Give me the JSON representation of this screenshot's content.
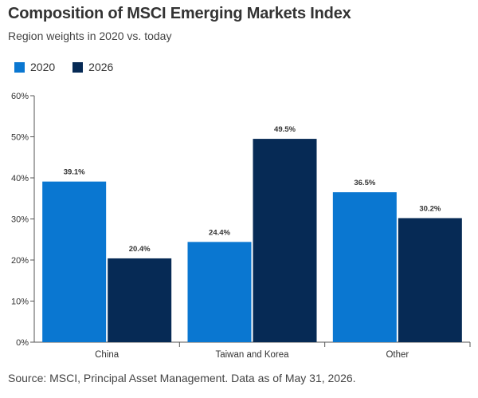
{
  "title": "Composition of MSCI Emerging Markets Index",
  "subtitle": "Region weights in 2020 vs. today",
  "source": "Source: MSCI, Principal Asset Management. Data as of May 31, 2026.",
  "colors": {
    "series_2020": "#0a77d1",
    "series_2026": "#062a55",
    "axis": "#555555",
    "gridline": "#dddddd"
  },
  "chart_data": {
    "type": "bar",
    "categories": [
      "China",
      "Taiwan and Korea",
      "Other"
    ],
    "series": [
      {
        "name": "2020",
        "values": [
          39.1,
          24.4,
          36.5
        ],
        "labels": [
          "39.1%",
          "24.4%",
          "36.5%"
        ]
      },
      {
        "name": "2026",
        "values": [
          20.4,
          49.5,
          30.2
        ],
        "labels": [
          "20.4%",
          "49.5%",
          "30.2%"
        ]
      }
    ],
    "yticks": [
      "0%",
      "10%",
      "20%",
      "30%",
      "40%",
      "50%",
      "60%"
    ],
    "ylim": [
      0,
      60
    ],
    "legend_position": "top-left",
    "grid": false
  }
}
